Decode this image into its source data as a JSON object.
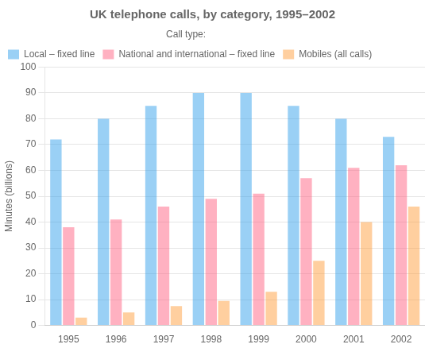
{
  "chart_data": {
    "type": "bar",
    "title": "UK telephone calls, by category, 1995–2002",
    "ylabel": "Minutes (billions)",
    "categories": [
      "1995",
      "1996",
      "1997",
      "1998",
      "1999",
      "2000",
      "2001",
      "2002"
    ],
    "series": [
      {
        "name": "Local – fixed line",
        "values": [
          72,
          80,
          85,
          90,
          90,
          85,
          80,
          73
        ]
      },
      {
        "name": "National and international – fixed line",
        "values": [
          38,
          41,
          46,
          49,
          51,
          57,
          61,
          62
        ]
      },
      {
        "name": "Mobiles (all calls)",
        "values": [
          3,
          5,
          7.5,
          9.5,
          13,
          25,
          40,
          46
        ]
      }
    ],
    "legend_title": "Call type:",
    "legend": "upper left",
    "ylim": [
      0,
      100
    ],
    "yticks": [
      0,
      10,
      20,
      30,
      40,
      50,
      60,
      70,
      80,
      90,
      100
    ],
    "grid": true
  }
}
